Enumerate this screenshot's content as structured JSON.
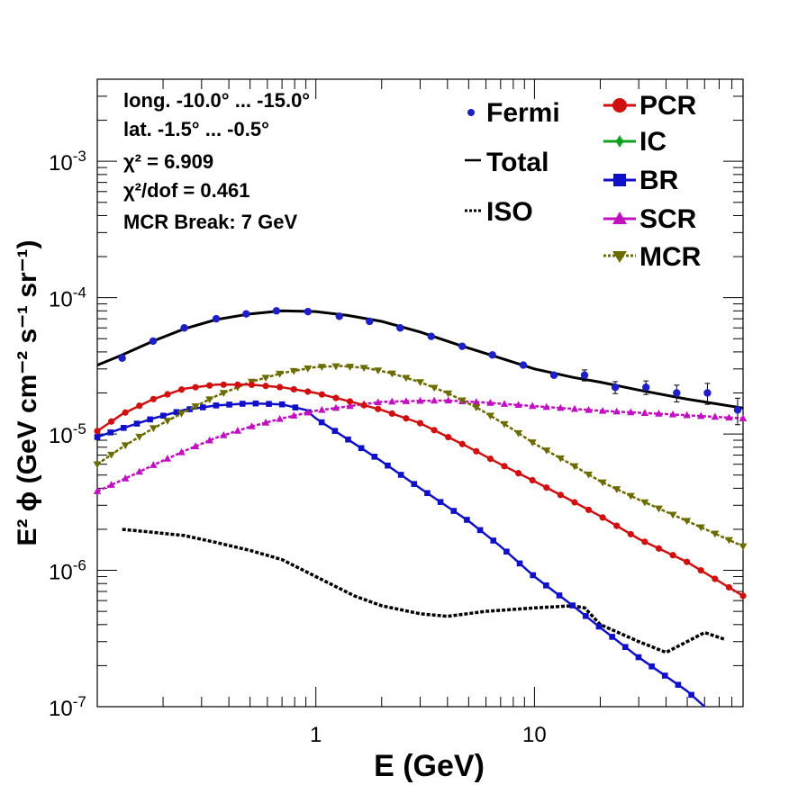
{
  "chart_data": {
    "type": "line",
    "xscale": "log",
    "yscale": "log",
    "xlim": [
      0.1,
      90
    ],
    "ylim": [
      1e-07,
      0.004
    ],
    "xlabel": "E (GeV)",
    "ylabel": "E² ϕ (GeV cm⁻² s⁻¹ sr⁻¹)",
    "x_ticks": [
      "1",
      "10"
    ],
    "y_ticks": [
      {
        "base": "10",
        "exp": "-7",
        "value": 1e-07
      },
      {
        "base": "10",
        "exp": "-6",
        "value": 1e-06
      },
      {
        "base": "10",
        "exp": "-5",
        "value": 1e-05
      },
      {
        "base": "10",
        "exp": "-4",
        "value": 0.0001
      },
      {
        "base": "10",
        "exp": "-3",
        "value": 0.001
      }
    ],
    "annotations": [
      "long. -10.0° ... -15.0°",
      "lat. -1.5° ... -0.5°",
      "χ² = 6.909",
      "χ²/dof = 0.461",
      "MCR Break:  7 GeV"
    ],
    "legend": {
      "placement": "top-right",
      "left_entries": [
        "Fermi",
        "Total",
        "ISO"
      ],
      "right_entries": [
        "PCR",
        "IC",
        "BR",
        "SCR",
        "MCR"
      ]
    },
    "series": [
      {
        "name": "Fermi",
        "style": "points",
        "color": "#1f1fc8",
        "x": [
          0.13,
          0.18,
          0.25,
          0.35,
          0.48,
          0.66,
          0.92,
          1.28,
          1.76,
          2.43,
          3.37,
          4.67,
          6.42,
          8.89,
          12.28,
          16.95,
          23.42,
          32.38,
          44.74,
          61.84,
          85.0
        ],
        "y": [
          3.6e-05,
          4.8e-05,
          6e-05,
          7e-05,
          7.6e-05,
          8e-05,
          7.9e-05,
          7.3e-05,
          6.7e-05,
          6e-05,
          5.2e-05,
          4.4e-05,
          3.8e-05,
          3.2e-05,
          2.7e-05,
          2.7e-05,
          2.2e-05,
          2.2e-05,
          2e-05,
          2e-05,
          1.5e-05
        ],
        "err_low": [
          0,
          0,
          0,
          0,
          0,
          0,
          0,
          0,
          0,
          0,
          0,
          0,
          0,
          0,
          0,
          2.5e-06,
          2.2e-06,
          2.5e-06,
          2.8e-06,
          3.5e-06,
          3.3e-06
        ],
        "err_high": [
          0,
          0,
          0,
          0,
          0,
          0,
          0,
          0,
          0,
          0,
          0,
          0,
          0,
          0,
          0,
          2.5e-06,
          2.2e-06,
          2.5e-06,
          2.8e-06,
          3.5e-06,
          3.3e-06
        ]
      },
      {
        "name": "Total",
        "style": "line",
        "color": "#000000",
        "x": [
          0.1,
          0.13,
          0.18,
          0.25,
          0.35,
          0.5,
          0.7,
          1.0,
          1.4,
          2.0,
          3.0,
          4.5,
          7.0,
          10,
          15,
          20,
          30,
          50,
          90
        ],
        "y": [
          3.2e-05,
          3.8e-05,
          4.8e-05,
          5.9e-05,
          6.9e-05,
          7.6e-05,
          8e-05,
          7.9e-05,
          7.4e-05,
          6.7e-05,
          5.6e-05,
          4.5e-05,
          3.6e-05,
          3e-05,
          2.6e-05,
          2.4e-05,
          2.1e-05,
          1.8e-05,
          1.55e-05
        ]
      },
      {
        "name": "ISO",
        "style": "dotted",
        "color": "#000000",
        "x": [
          0.13,
          0.18,
          0.25,
          0.35,
          0.5,
          0.7,
          1.0,
          1.5,
          2.0,
          3.0,
          4.0,
          6.0,
          10,
          15,
          17,
          20,
          30,
          40,
          50,
          60,
          75
        ],
        "y": [
          2e-06,
          1.9e-06,
          1.8e-06,
          1.6e-06,
          1.4e-06,
          1.2e-06,
          9e-07,
          6.5e-07,
          5.5e-07,
          4.8e-07,
          4.6e-07,
          5e-07,
          5.3e-07,
          5.5e-07,
          5.3e-07,
          4e-07,
          3e-07,
          2.5e-07,
          3e-07,
          3.5e-07,
          3.1e-07
        ]
      },
      {
        "name": "PCR",
        "style": "markers",
        "marker": "circle",
        "color": "#d01010",
        "x": [
          0.1,
          0.13,
          0.18,
          0.25,
          0.35,
          0.5,
          0.7,
          1.0,
          1.5,
          2.0,
          3.0,
          5.0,
          7.0,
          10,
          15,
          20,
          30,
          50,
          90
        ],
        "y": [
          1.05e-05,
          1.4e-05,
          1.8e-05,
          2.15e-05,
          2.3e-05,
          2.3e-05,
          2.2e-05,
          2e-05,
          1.7e-05,
          1.5e-05,
          1.2e-05,
          8e-06,
          6e-06,
          4.5e-06,
          3.2e-06,
          2.5e-06,
          1.7e-06,
          1.15e-06,
          6.5e-07
        ]
      },
      {
        "name": "BR",
        "style": "markers",
        "marker": "square",
        "color": "#1010c8",
        "x": [
          0.1,
          0.13,
          0.18,
          0.25,
          0.35,
          0.5,
          0.7,
          0.9,
          1.0,
          1.5,
          2.0,
          3.0,
          5.0,
          7.0,
          10,
          15,
          20,
          30,
          50,
          60
        ],
        "y": [
          9.5e-06,
          1.1e-05,
          1.3e-05,
          1.5e-05,
          1.62e-05,
          1.68e-05,
          1.65e-05,
          1.5e-05,
          1.3e-05,
          8.5e-06,
          6.3e-06,
          4e-06,
          2.3e-06,
          1.5e-06,
          9e-07,
          5.5e-07,
          3.8e-07,
          2.3e-07,
          1.3e-07,
          1e-07
        ]
      },
      {
        "name": "SCR",
        "style": "markers",
        "marker": "triangle-up",
        "color": "#c010c0",
        "x": [
          0.1,
          0.13,
          0.18,
          0.25,
          0.35,
          0.5,
          0.7,
          1.0,
          1.5,
          2.0,
          3.0,
          4.0,
          6.0,
          10,
          20,
          40,
          90
        ],
        "y": [
          3.8e-06,
          4.6e-06,
          5.9e-06,
          7.5e-06,
          9.4e-06,
          1.13e-05,
          1.3e-05,
          1.48e-05,
          1.62e-05,
          1.72e-05,
          1.75e-05,
          1.76e-05,
          1.7e-05,
          1.6e-05,
          1.48e-05,
          1.4e-05,
          1.3e-05
        ]
      },
      {
        "name": "MCR",
        "style": "markers",
        "marker": "triangle-down",
        "color": "#6b6b00",
        "x": [
          0.1,
          0.13,
          0.18,
          0.25,
          0.35,
          0.5,
          0.7,
          1.0,
          1.3,
          1.7,
          2.2,
          3.0,
          4.0,
          5.5,
          7.5,
          10,
          15,
          20,
          30,
          50,
          90
        ],
        "y": [
          6e-06,
          8e-06,
          1.1e-05,
          1.45e-05,
          1.9e-05,
          2.4e-05,
          2.8e-05,
          3.1e-05,
          3.15e-05,
          3.05e-05,
          2.8e-05,
          2.4e-05,
          2e-05,
          1.55e-05,
          1.15e-05,
          8.5e-06,
          5.9e-06,
          4.5e-06,
          3.3e-06,
          2.3e-06,
          1.5e-06
        ]
      }
    ]
  }
}
